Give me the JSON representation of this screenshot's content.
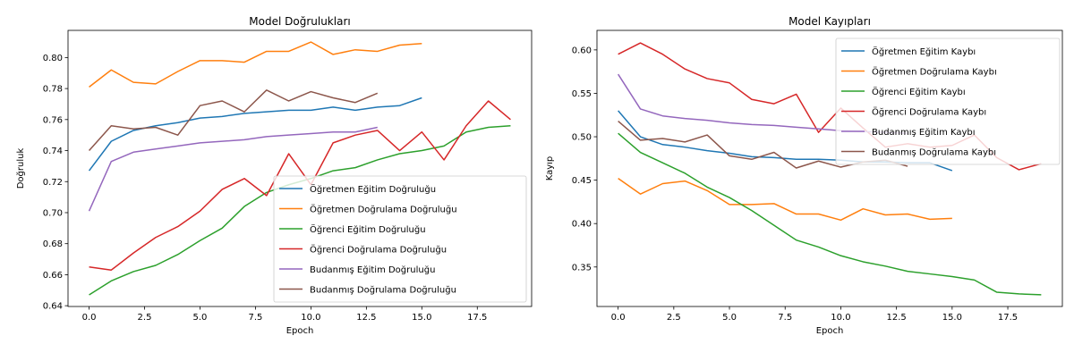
{
  "chart_data": [
    {
      "type": "line",
      "title": "Model Doğrulukları",
      "xlabel": "Epoch",
      "ylabel": "Doğruluk",
      "xlim": [
        -0.95,
        19.95
      ],
      "ylim": [
        0.6395,
        0.8175
      ],
      "xticks": [
        0,
        2.5,
        5,
        7.5,
        10,
        12.5,
        15,
        17.5
      ],
      "xtick_labels": [
        "0.0",
        "2.5",
        "5.0",
        "7.5",
        "10.0",
        "12.5",
        "15.0",
        "17.5"
      ],
      "yticks": [
        0.64,
        0.66,
        0.68,
        0.7,
        0.72,
        0.74,
        0.76,
        0.78,
        0.8
      ],
      "ytick_labels": [
        "0.64",
        "0.66",
        "0.68",
        "0.70",
        "0.72",
        "0.74",
        "0.76",
        "0.78",
        "0.80"
      ],
      "grid": false,
      "legend": "lower right",
      "series": [
        {
          "name": "Öğretmen Eğitim Doğruluğu",
          "color": "#1f77b4",
          "values": [
            0.727,
            0.746,
            0.753,
            0.756,
            0.758,
            0.761,
            0.762,
            0.764,
            0.765,
            0.766,
            0.766,
            0.768,
            0.766,
            0.768,
            0.769,
            0.774
          ]
        },
        {
          "name": "Öğretmen Doğrulama Doğruluğu",
          "color": "#ff7f0e",
          "values": [
            0.781,
            0.792,
            0.784,
            0.783,
            0.791,
            0.798,
            0.798,
            0.797,
            0.804,
            0.804,
            0.81,
            0.802,
            0.805,
            0.804,
            0.808,
            0.809
          ]
        },
        {
          "name": "Öğrenci Eğitim Doğruluğu",
          "color": "#2ca02c",
          "values": [
            0.647,
            0.656,
            0.662,
            0.666,
            0.673,
            0.682,
            0.69,
            0.704,
            0.713,
            0.718,
            0.722,
            0.727,
            0.729,
            0.734,
            0.738,
            0.74,
            0.743,
            0.752,
            0.755,
            0.756
          ]
        },
        {
          "name": "Öğrenci Doğrulama Doğruluğu",
          "color": "#d62728",
          "values": [
            0.665,
            0.663,
            0.674,
            0.684,
            0.691,
            0.701,
            0.715,
            0.722,
            0.711,
            0.738,
            0.718,
            0.745,
            0.75,
            0.753,
            0.74,
            0.752,
            0.734,
            0.756,
            0.772,
            0.76
          ]
        },
        {
          "name": "Budanmış Eğitim Doğruluğu",
          "color": "#9467bd",
          "values": [
            0.701,
            0.733,
            0.739,
            0.741,
            0.743,
            0.745,
            0.746,
            0.747,
            0.749,
            0.75,
            0.751,
            0.752,
            0.752,
            0.755
          ]
        },
        {
          "name": "Budanmış Doğrulama Doğruluğu",
          "color": "#8c564b",
          "values": [
            0.74,
            0.756,
            0.754,
            0.755,
            0.75,
            0.769,
            0.772,
            0.765,
            0.779,
            0.772,
            0.778,
            0.774,
            0.771,
            0.777
          ]
        }
      ]
    },
    {
      "type": "line",
      "title": "Model Kayıpları",
      "xlabel": "Epoch",
      "ylabel": "Kayıp",
      "xlim": [
        -0.95,
        19.95
      ],
      "ylim": [
        0.3045,
        0.6225
      ],
      "xticks": [
        0,
        2.5,
        5,
        7.5,
        10,
        12.5,
        15,
        17.5
      ],
      "xtick_labels": [
        "0.0",
        "2.5",
        "5.0",
        "7.5",
        "10.0",
        "12.5",
        "15.0",
        "17.5"
      ],
      "yticks": [
        0.35,
        0.4,
        0.45,
        0.5,
        0.55,
        0.6
      ],
      "ytick_labels": [
        "0.35",
        "0.40",
        "0.45",
        "0.50",
        "0.55",
        "0.60"
      ],
      "grid": false,
      "legend": "upper right",
      "series": [
        {
          "name": "Öğretmen Eğitim Kaybı",
          "color": "#1f77b4",
          "values": [
            0.53,
            0.5,
            0.491,
            0.488,
            0.484,
            0.481,
            0.477,
            0.476,
            0.474,
            0.474,
            0.473,
            0.471,
            0.471,
            0.47,
            0.47,
            0.461
          ]
        },
        {
          "name": "Öğretmen Doğrulama Kaybı",
          "color": "#ff7f0e",
          "values": [
            0.452,
            0.434,
            0.446,
            0.449,
            0.438,
            0.422,
            0.422,
            0.423,
            0.411,
            0.411,
            0.404,
            0.417,
            0.41,
            0.411,
            0.405,
            0.406
          ]
        },
        {
          "name": "Öğrenci Eğitim Kaybı",
          "color": "#2ca02c",
          "values": [
            0.504,
            0.482,
            0.47,
            0.458,
            0.442,
            0.43,
            0.415,
            0.398,
            0.381,
            0.373,
            0.363,
            0.356,
            0.351,
            0.345,
            0.342,
            0.339,
            0.335,
            0.321,
            0.319,
            0.318
          ]
        },
        {
          "name": "Öğrenci Doğrulama Kaybı",
          "color": "#d62728",
          "values": [
            0.595,
            0.608,
            0.595,
            0.578,
            0.567,
            0.562,
            0.543,
            0.538,
            0.549,
            0.505,
            0.533,
            0.51,
            0.488,
            0.492,
            0.488,
            0.49,
            0.502,
            0.476,
            0.462,
            0.469
          ]
        },
        {
          "name": "Budanmış Eğitim Kaybı",
          "color": "#9467bd",
          "values": [
            0.572,
            0.532,
            0.524,
            0.521,
            0.519,
            0.516,
            0.514,
            0.513,
            0.511,
            0.509,
            0.507,
            0.506,
            0.505,
            0.504
          ]
        },
        {
          "name": "Budanmış Doğrulama Kaybı",
          "color": "#8c564b",
          "values": [
            0.518,
            0.496,
            0.498,
            0.494,
            0.502,
            0.478,
            0.474,
            0.482,
            0.464,
            0.472,
            0.465,
            0.471,
            0.473,
            0.466
          ]
        }
      ]
    }
  ]
}
